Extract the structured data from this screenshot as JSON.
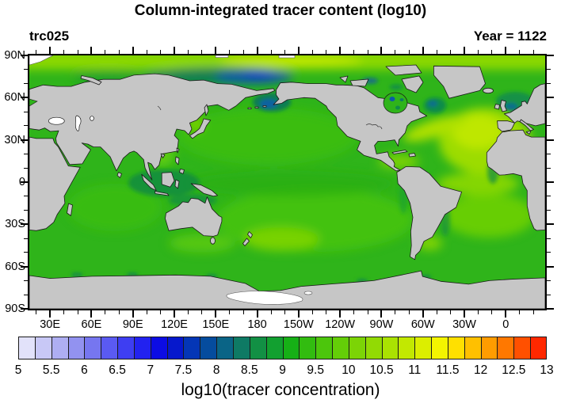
{
  "title": "Column-integrated tracer content (log10)",
  "subtitle_left": "trc025",
  "subtitle_right": "Year = 1122",
  "map": {
    "lat_labels": [
      "90N",
      "60N",
      "30N",
      "0",
      "30S",
      "60S",
      "90S"
    ],
    "lon_labels": [
      "30E",
      "60E",
      "90E",
      "120E",
      "150E",
      "180",
      "150W",
      "120W",
      "90W",
      "60W",
      "30W",
      "0"
    ],
    "land_color": "#c6c6c6",
    "coast_color": "#1a1a1a",
    "ocean_base_color": "#2fb41a",
    "lake_color": "#ffffff"
  },
  "colorbar": {
    "tick_labels": [
      "5",
      "5.5",
      "6",
      "6.5",
      "7",
      "7.5",
      "8",
      "8.5",
      "9",
      "9.5",
      "10",
      "10.5",
      "11",
      "11.5",
      "12",
      "12.5",
      "13"
    ],
    "cell_colors": [
      "#e2e2fa",
      "#c8c8f6",
      "#aeaef2",
      "#9292f0",
      "#7676f0",
      "#5a5af2",
      "#3e3ef2",
      "#2222f0",
      "#0c0ce4",
      "#0618cc",
      "#0436b6",
      "#054c9e",
      "#0a6486",
      "#0e7a64",
      "#129044",
      "#12a030",
      "#16b016",
      "#32bc10",
      "#4cc60c",
      "#64ce08",
      "#7cd406",
      "#92da04",
      "#aae202",
      "#c2e801",
      "#dcee00",
      "#f4f400",
      "#ffe000",
      "#ffc000",
      "#ff9c00",
      "#ff7800",
      "#ff5000",
      "#ff2800"
    ],
    "caption": "log10(tracer concentration)"
  },
  "chart_data": {
    "type": "heatmap",
    "title": "Column-integrated tracer content (log10)",
    "variable_label": "trc025",
    "time_label": "Year = 1122",
    "projection": "cylindrical equidistant, Pacific-centered (left edge ~15E)",
    "x_tick_labels": [
      "30E",
      "60E",
      "90E",
      "120E",
      "150E",
      "180",
      "150W",
      "120W",
      "90W",
      "60W",
      "30W",
      "0"
    ],
    "y_tick_labels": [
      "90N",
      "60N",
      "30N",
      "0",
      "30S",
      "60S",
      "90S"
    ],
    "colorbar_label": "log10(tracer concentration)",
    "colorbar_levels": {
      "min": 5,
      "max": 13,
      "step": 0.25,
      "labeled_every": 0.5
    },
    "field_units": "log10(tracer concentration)",
    "approx_region_values_log10": [
      {
        "region": "open ocean (Pacific, Indian, Southern Ocean)",
        "value": 9.75
      },
      {
        "region": "subtropical South Pacific / SE of New Zealand",
        "value": 10.5
      },
      {
        "region": "North Atlantic subtropical gyre",
        "value": 11.0
      },
      {
        "region": "equatorial / South Atlantic",
        "value": 10.5
      },
      {
        "region": "Arctic polar cap (>85N)",
        "value": 10.5
      },
      {
        "region": "Siberian Arctic shelf",
        "value": 7.0
      },
      {
        "region": "Bering Sea / Sea of Okhotsk shelves",
        "value": 8.0
      },
      {
        "region": "Labrador Sea / around UK shelves",
        "value": 8.5
      },
      {
        "region": "Indonesian seas coastal fringe",
        "value": 8.5
      },
      {
        "region": "Antarctic coastal flecks",
        "value": 8.0
      },
      {
        "region": "land / marginal lakes (Black, Caspian, Ross shelf)",
        "value": null
      }
    ]
  }
}
